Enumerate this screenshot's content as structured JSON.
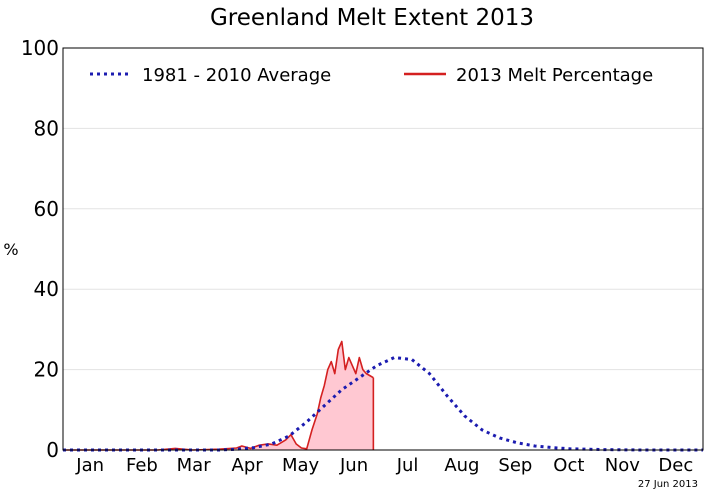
{
  "chart_data": {
    "type": "line",
    "title": "Greenland Melt Extent 2013",
    "xlabel": "",
    "ylabel": "%",
    "ylim": [
      0,
      100
    ],
    "yticks": [
      "0",
      "20",
      "40",
      "60",
      "80",
      "100"
    ],
    "xlim": [
      1,
      366
    ],
    "months": [
      "Jan",
      "Feb",
      "Mar",
      "Apr",
      "May",
      "Jun",
      "Jul",
      "Aug",
      "Sep",
      "Oct",
      "Nov",
      "Dec"
    ],
    "grid": true,
    "legend_position": "top",
    "date_note": "27 Jun 2013",
    "series": [
      {
        "name": "1981 - 2010 Average",
        "style": "dotted",
        "color": "#1c1cb0",
        "x": [
          1,
          60,
          90,
          100,
          110,
          120,
          130,
          140,
          150,
          160,
          170,
          180,
          190,
          200,
          210,
          220,
          230,
          240,
          250,
          260,
          270,
          280,
          290,
          300,
          310,
          330,
          366
        ],
        "y": [
          0,
          0,
          0,
          0.2,
          0.6,
          1.5,
          3.5,
          7,
          11,
          15,
          18,
          21,
          23,
          22.5,
          19,
          13.5,
          8.5,
          5,
          3,
          1.8,
          1,
          0.6,
          0.3,
          0.2,
          0.1,
          0,
          0
        ]
      },
      {
        "name": "2013 Melt Percentage",
        "style": "solid",
        "color": "#d42020",
        "fill": "#ffc8d2",
        "x": [
          1,
          40,
          55,
          65,
          75,
          90,
          100,
          103,
          108,
          113,
          118,
          123,
          128,
          131,
          134,
          137,
          140,
          143,
          146,
          148,
          150,
          152,
          154,
          156,
          158,
          160,
          162,
          164,
          166,
          168,
          170,
          172,
          174,
          176,
          178
        ],
        "y": [
          0,
          0,
          0,
          0.4,
          0,
          0.2,
          0.5,
          1,
          0.4,
          1.2,
          1.5,
          1.2,
          2.5,
          3.8,
          1.5,
          0.5,
          0.3,
          5,
          9,
          13,
          16,
          20,
          22,
          19,
          25,
          27,
          20,
          23,
          21,
          19,
          23,
          20,
          19,
          18.5,
          18
        ]
      }
    ]
  }
}
